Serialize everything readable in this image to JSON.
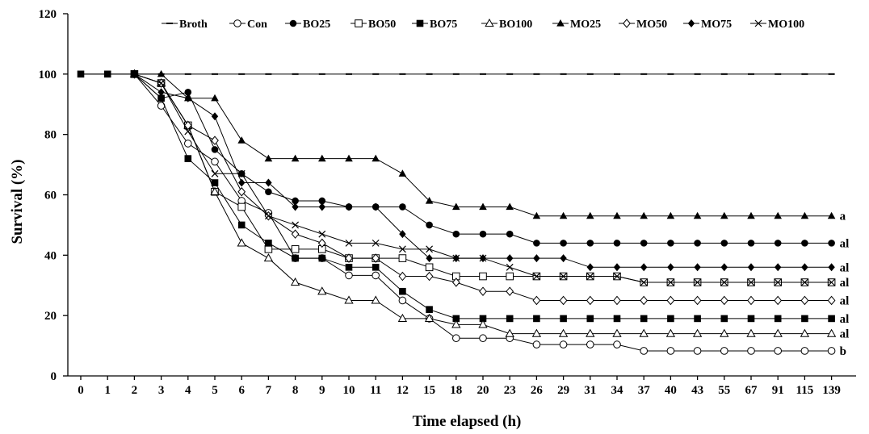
{
  "chart_data": {
    "type": "line",
    "title": "",
    "xlabel": "Time elapsed (h)",
    "ylabel": "Survival (%)",
    "ylim": [
      0,
      120
    ],
    "yticks": [
      0,
      20,
      40,
      60,
      80,
      100,
      120
    ],
    "x": [
      "0",
      "1",
      "2",
      "3",
      "4",
      "5",
      "6",
      "7",
      "8",
      "9",
      "10",
      "11",
      "12",
      "15",
      "18",
      "20",
      "23",
      "26",
      "29",
      "31",
      "34",
      "37",
      "40",
      "43",
      "55",
      "67",
      "91",
      "115",
      "139"
    ],
    "legend_position": "top",
    "grid": false,
    "series": [
      {
        "name": "Broth",
        "marker": "dash",
        "values": [
          100,
          100,
          100,
          100,
          100,
          100,
          100,
          100,
          100,
          100,
          100,
          100,
          100,
          100,
          100,
          100,
          100,
          100,
          100,
          100,
          100,
          100,
          100,
          100,
          100,
          100,
          100,
          100,
          100
        ]
      },
      {
        "name": "Con",
        "marker": "circle-open",
        "values": [
          null,
          null,
          100,
          89.5,
          77,
          71,
          58,
          54,
          39,
          39,
          33.3,
          33.3,
          25,
          19,
          12.5,
          12.5,
          12.5,
          10.4,
          10.4,
          10.4,
          10.4,
          8.3,
          8.3,
          8.3,
          8.3,
          8.3,
          8.3,
          8.3,
          8.3
        ]
      },
      {
        "name": "BO25",
        "marker": "circle-filled",
        "values": [
          null,
          null,
          100,
          92,
          94,
          75,
          67,
          61,
          58,
          58,
          56,
          56,
          56,
          50,
          47,
          47,
          47,
          44,
          44,
          44,
          44,
          44,
          44,
          44,
          44,
          44,
          44,
          44,
          44
        ]
      },
      {
        "name": "BO50",
        "marker": "square-open",
        "values": [
          null,
          null,
          100,
          97,
          83,
          61,
          56,
          42,
          42,
          42,
          39,
          39,
          39,
          36,
          33,
          33,
          33,
          33,
          33,
          33,
          33,
          31,
          31,
          31,
          31,
          31,
          31,
          31,
          31
        ]
      },
      {
        "name": "BO75",
        "marker": "square-filled",
        "values": [
          100,
          100,
          100,
          92,
          72,
          64,
          50,
          44,
          39,
          39,
          36,
          36,
          28,
          22,
          19,
          19,
          19,
          19,
          19,
          19,
          19,
          19,
          19,
          19,
          19,
          19,
          19,
          19,
          19
        ]
      },
      {
        "name": "BO100",
        "marker": "triangle-open",
        "values": [
          null,
          null,
          100,
          97,
          83,
          61,
          44,
          39,
          31,
          28,
          25,
          25,
          19,
          19,
          17,
          17,
          14,
          14,
          14,
          14,
          14,
          14,
          14,
          14,
          14,
          14,
          14,
          14,
          14
        ]
      },
      {
        "name": "MO25",
        "marker": "triangle-filled",
        "values": [
          null,
          null,
          100,
          100,
          92,
          92,
          78,
          72,
          72,
          72,
          72,
          72,
          67,
          58,
          56,
          56,
          56,
          53,
          53,
          53,
          53,
          53,
          53,
          53,
          53,
          53,
          53,
          53,
          53
        ]
      },
      {
        "name": "MO50",
        "marker": "diamond-open",
        "values": [
          null,
          null,
          100,
          97,
          83,
          78,
          61,
          53,
          47,
          44,
          39,
          39,
          33,
          33,
          31,
          28,
          28,
          25,
          25,
          25,
          25,
          25,
          25,
          25,
          25,
          25,
          25,
          25,
          25
        ]
      },
      {
        "name": "MO75",
        "marker": "diamond-filled",
        "values": [
          null,
          null,
          100,
          94,
          92,
          86,
          64,
          64,
          56,
          56,
          56,
          56,
          47,
          39,
          39,
          39,
          39,
          39,
          39,
          36,
          36,
          36,
          36,
          36,
          36,
          36,
          36,
          36,
          36
        ]
      },
      {
        "name": "MO100",
        "marker": "x",
        "values": [
          null,
          null,
          100,
          97,
          81,
          67,
          67,
          53,
          50,
          47,
          44,
          44,
          42,
          42,
          39,
          39,
          36,
          33,
          33,
          33,
          33,
          31,
          31,
          31,
          31,
          31,
          31,
          31,
          31
        ]
      }
    ],
    "end_labels": [
      {
        "series": "MO25",
        "text": "a"
      },
      {
        "series": "BO25",
        "text": "al"
      },
      {
        "series": "MO75",
        "text": "al"
      },
      {
        "series": "BO50",
        "text": "al"
      },
      {
        "series": "MO50",
        "text": "al"
      },
      {
        "series": "BO75",
        "text": "al"
      },
      {
        "series": "BO100",
        "text": "al"
      },
      {
        "series": "Con",
        "text": "b"
      }
    ]
  }
}
